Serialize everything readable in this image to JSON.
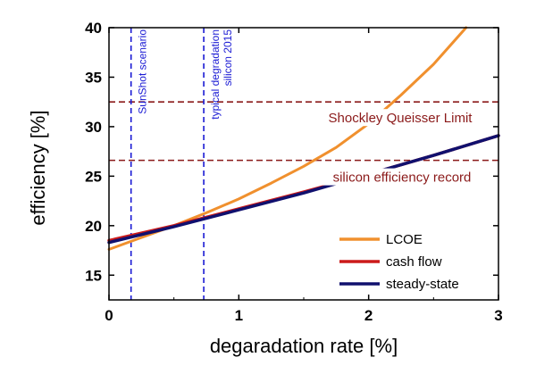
{
  "chart_data": {
    "type": "line",
    "xlabel": "degaradation rate [%]",
    "ylabel": "efficiency [%]",
    "xlim": [
      0,
      3
    ],
    "ylim": [
      12.5,
      40
    ],
    "xticks": [
      0,
      1,
      2,
      3
    ],
    "yticks": [
      15,
      20,
      25,
      30,
      35,
      40
    ],
    "grid": false,
    "legend_position": "bottom-right",
    "series": [
      {
        "name": "LCOE",
        "color": "#f0902e",
        "x": [
          0,
          0.25,
          0.5,
          0.75,
          1.0,
          1.25,
          1.5,
          1.75,
          2.0,
          2.25,
          2.5,
          2.75
        ],
        "y": [
          17.6,
          18.8,
          20.0,
          21.3,
          22.7,
          24.3,
          26.0,
          27.9,
          30.3,
          33.2,
          36.3,
          40.0
        ]
      },
      {
        "name": "cash flow",
        "color": "#cc1a1a",
        "x": [
          0,
          0.5,
          1.0,
          1.5,
          2.0,
          2.5,
          3.0
        ],
        "y": [
          18.5,
          20.0,
          21.7,
          23.4,
          25.2,
          27.1,
          29.1
        ]
      },
      {
        "name": "steady-state",
        "color": "#10106e",
        "x": [
          0,
          0.5,
          1.0,
          1.5,
          2.0,
          2.5,
          3.0
        ],
        "y": [
          18.3,
          19.9,
          21.6,
          23.3,
          25.2,
          27.1,
          29.1
        ]
      }
    ],
    "hlines": [
      {
        "y": 32.5,
        "label": "Shockley Queisser Limit",
        "color": "#8b1a1a"
      },
      {
        "y": 26.6,
        "label": "silicon efficiency record",
        "color": "#8b1a1a"
      }
    ],
    "vlines": [
      {
        "x": 0.17,
        "label": [
          "SunShot scenario"
        ],
        "color": "#1a1ad4"
      },
      {
        "x": 0.73,
        "label": [
          "typical degradation",
          "silicon 2015"
        ],
        "color": "#1a1ad4"
      }
    ]
  }
}
